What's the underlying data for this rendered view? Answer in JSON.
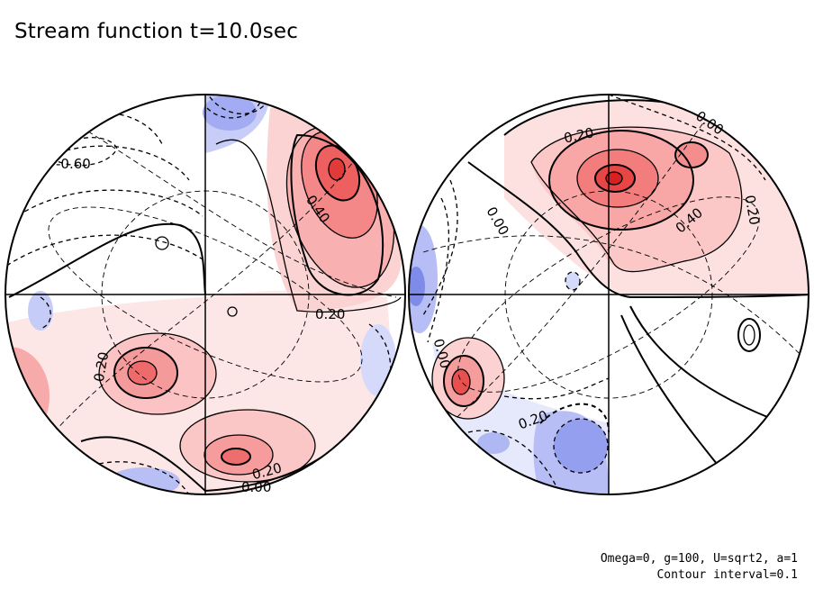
{
  "title": "Stream function t=10.0sec",
  "parameters_note": "Omega=0, g=100, U=sqrt2, a=1",
  "contour_note": "Contour interval=0.1",
  "colors": {
    "positive": "#ee3333",
    "negative": "#3344ee",
    "line": "#000000"
  },
  "contour_labels": {
    "left": [
      "-0.60",
      "0.40",
      "0.20",
      "0.20",
      "0.20",
      "0.00"
    ],
    "right": [
      "0.20",
      "0.00",
      "0.40",
      "0.20",
      "0.00",
      "0.00",
      "0.20"
    ]
  }
}
